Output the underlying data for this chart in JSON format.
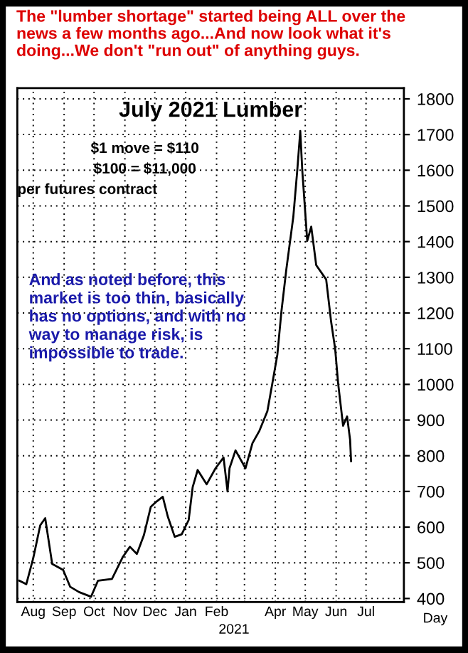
{
  "chart_data": {
    "type": "line",
    "title": "July 2021 Lumber",
    "subtitle": "The \"lumber shortage\" started being ALL over the\nnews a few months ago...And now look what it's\ndoing...We don't \"run out\" of anything guys.",
    "annotations": [
      "$1 move = $110",
      "$100 = $11,000",
      "per futures contract",
      "And as noted before, this\nmarket is too thin, basically\nhas no options, and with no\nway to manage risk, is\nimpossible to trade.",
      "2021",
      "Day"
    ],
    "x": [
      "2020-08-01",
      "2020-08-08",
      "2020-08-15",
      "2020-08-22",
      "2020-08-27",
      "2020-09-03",
      "2020-09-14",
      "2020-09-21",
      "2020-09-30",
      "2020-10-12",
      "2020-10-19",
      "2020-11-02",
      "2020-11-13",
      "2020-11-20",
      "2020-11-27",
      "2020-12-04",
      "2020-12-11",
      "2020-12-16",
      "2020-12-23",
      "2020-12-28",
      "2021-01-04",
      "2021-01-11",
      "2021-01-18",
      "2021-01-22",
      "2021-01-27",
      "2021-02-05",
      "2021-02-14",
      "2021-02-22",
      "2021-02-26",
      "2021-02-28",
      "2021-03-06",
      "2021-03-16",
      "2021-03-23",
      "2021-03-30",
      "2021-04-07",
      "2021-04-12",
      "2021-04-17",
      "2021-04-21",
      "2021-04-26",
      "2021-05-03",
      "2021-05-07",
      "2021-05-10",
      "2021-05-12",
      "2021-05-17",
      "2021-05-21",
      "2021-05-26",
      "2021-06-05",
      "2021-06-10",
      "2021-06-14",
      "2021-06-17",
      "2021-06-22",
      "2021-06-26",
      "2021-06-29",
      "2021-06-30"
    ],
    "series": [
      {
        "color": "#000000",
        "values": [
          450,
          440,
          513,
          605,
          625,
          497,
          480,
          433,
          418,
          405,
          450,
          455,
          517,
          545,
          525,
          577,
          657,
          670,
          685,
          630,
          573,
          580,
          620,
          712,
          760,
          720,
          765,
          795,
          700,
          765,
          815,
          765,
          835,
          870,
          925,
          1003,
          1083,
          1202,
          1322,
          1469,
          1600,
          1710,
          1600,
          1402,
          1442,
          1334,
          1294,
          1175,
          1100,
          1003,
          884,
          910,
          845,
          785
        ]
      }
    ],
    "xlim": [
      "2020-07-30",
      "2021-08-22"
    ],
    "xticks": [
      {
        "value": "2020-08-15",
        "label": "Aug"
      },
      {
        "value": "2020-09-15",
        "label": "Sep"
      },
      {
        "value": "2020-10-15",
        "label": "Oct"
      },
      {
        "value": "2020-11-15",
        "label": "Nov"
      },
      {
        "value": "2020-12-15",
        "label": "Dec"
      },
      {
        "value": "2021-01-15",
        "label": "Jan"
      },
      {
        "value": "2021-02-15",
        "label": "Feb"
      },
      {
        "value": "2021-03-15",
        "label": null
      },
      {
        "value": "2021-04-15",
        "label": "Apr"
      },
      {
        "value": "2021-05-15",
        "label": "May"
      },
      {
        "value": "2021-06-15",
        "label": "Jun"
      },
      {
        "value": "2021-07-15",
        "label": "Jul"
      }
    ],
    "ylim": [
      390,
      1830
    ],
    "yticks": [
      400,
      500,
      600,
      700,
      800,
      900,
      1000,
      1100,
      1200,
      1300,
      1400,
      1500,
      1600,
      1700,
      1800
    ],
    "grid": true,
    "legend": false,
    "marker": "none",
    "line_style": "solid"
  }
}
